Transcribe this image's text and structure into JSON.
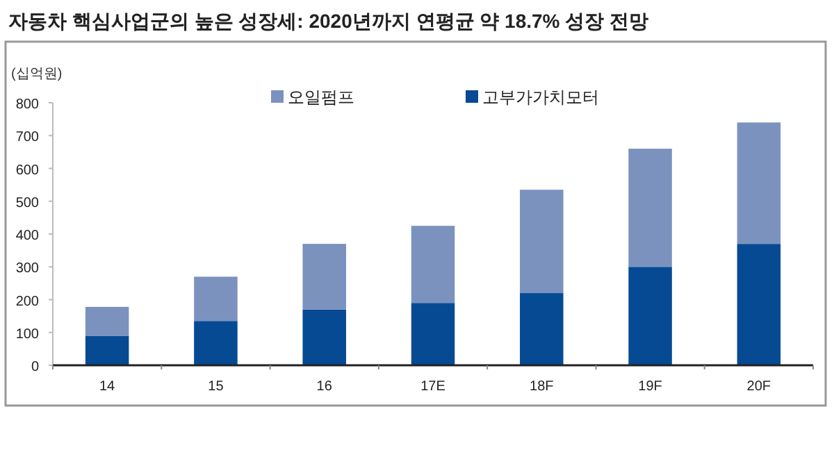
{
  "chart_data": {
    "type": "bar",
    "title": "자동차 핵심사업군의 높은 성장세: 2020년까지 연평균 약 18.7% 성장 전망",
    "ylabel": "(십억원)",
    "categories": [
      "14",
      "15",
      "16",
      "17E",
      "18F",
      "19F",
      "20F"
    ],
    "stacked": true,
    "series": [
      {
        "name": "고부가가치모터",
        "color": "#064a94",
        "values": [
          90,
          135,
          170,
          190,
          220,
          300,
          370
        ]
      },
      {
        "name": "오일펌프",
        "color": "#7b92bf",
        "values": [
          88,
          135,
          200,
          235,
          315,
          360,
          370
        ]
      }
    ],
    "ylim": [
      0,
      800
    ],
    "yticks": [
      0,
      100,
      200,
      300,
      400,
      500,
      600,
      700,
      800
    ],
    "legend": "top"
  }
}
